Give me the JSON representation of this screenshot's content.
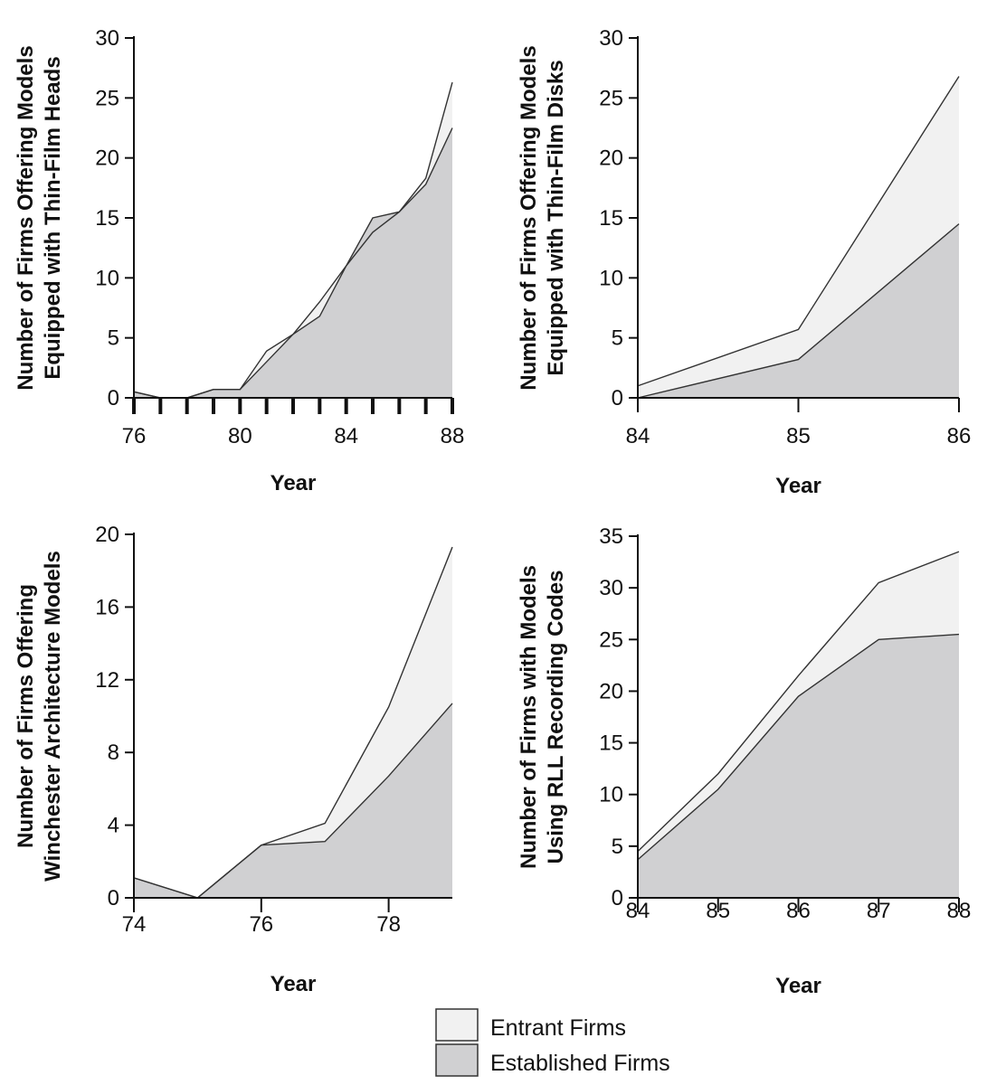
{
  "colors": {
    "entrant": "#f1f1f1",
    "established": "#d0d0d2",
    "line": "#333333",
    "axis": "#111111"
  },
  "legend": {
    "items": [
      {
        "label": "Entrant Firms",
        "color": "#f1f1f1"
      },
      {
        "label": "Established Firms",
        "color": "#d0d0d2"
      }
    ]
  },
  "chart_data": [
    {
      "type": "area",
      "stacked": true,
      "xlabel": "Year",
      "ylabel": [
        "Number of Firms Offering Models",
        "Equipped with Thin-Film Heads"
      ],
      "xlim": [
        76,
        88
      ],
      "ylim": [
        0,
        30
      ],
      "xticks": [
        76,
        80,
        84,
        88
      ],
      "yticks": [
        0,
        5,
        10,
        15,
        20,
        25,
        30
      ],
      "minor_xticks": [
        76,
        77,
        78,
        79,
        80,
        81,
        82,
        83,
        84,
        85,
        86,
        87,
        88
      ],
      "x": [
        76,
        77,
        78,
        79,
        80,
        81,
        82,
        83,
        84,
        85,
        86,
        87,
        88
      ],
      "series": [
        {
          "name": "Established Firms",
          "values": [
            0.5,
            0,
            0,
            0.7,
            0.7,
            3.0,
            5.3,
            6.8,
            11.0,
            15.0,
            15.5,
            17.8,
            22.5
          ]
        },
        {
          "name": "Entrant Firms",
          "values": [
            0,
            0,
            0,
            0,
            0,
            0.9,
            0,
            1.2,
            0,
            -1.2,
            0,
            0.5,
            3.8
          ]
        }
      ]
    },
    {
      "type": "area",
      "stacked": true,
      "xlabel": "Year",
      "ylabel": [
        "Number of Firms Offering Models",
        "Equipped with Thin-Film Disks"
      ],
      "xlim": [
        84,
        86
      ],
      "ylim": [
        0,
        30
      ],
      "xticks": [
        84,
        85,
        86
      ],
      "yticks": [
        0,
        5,
        10,
        15,
        20,
        25,
        30
      ],
      "x": [
        84,
        85,
        86
      ],
      "series": [
        {
          "name": "Established Firms",
          "values": [
            0,
            3.2,
            14.5
          ]
        },
        {
          "name": "Entrant Firms",
          "values": [
            1.0,
            2.5,
            12.3
          ]
        }
      ]
    },
    {
      "type": "area",
      "stacked": true,
      "xlabel": "Year",
      "ylabel": [
        "Number of Firms Offering",
        "Winchester Architecture Models"
      ],
      "xlim": [
        74,
        79
      ],
      "ylim": [
        0,
        20
      ],
      "xticks": [
        74,
        76,
        78
      ],
      "yticks": [
        0,
        4,
        8,
        12,
        16,
        20
      ],
      "x": [
        74,
        75,
        76,
        77,
        78,
        79
      ],
      "series": [
        {
          "name": "Established Firms",
          "values": [
            1.1,
            0,
            2.9,
            3.1,
            6.7,
            10.7
          ]
        },
        {
          "name": "Entrant Firms",
          "values": [
            0,
            0,
            0,
            1.0,
            3.8,
            8.6
          ]
        }
      ]
    },
    {
      "type": "area",
      "stacked": true,
      "xlabel": "Year",
      "ylabel": [
        "Number of Firms with Models",
        "Using RLL Recording Codes"
      ],
      "xlim": [
        84,
        88
      ],
      "ylim": [
        0,
        35
      ],
      "xticks": [
        84,
        85,
        86,
        87,
        88
      ],
      "yticks": [
        0,
        5,
        10,
        15,
        20,
        25,
        30,
        35
      ],
      "x": [
        84,
        85,
        86,
        87,
        88
      ],
      "series": [
        {
          "name": "Established Firms",
          "values": [
            3.7,
            10.5,
            19.5,
            25.0,
            25.5
          ]
        },
        {
          "name": "Entrant Firms",
          "values": [
            0.8,
            1.5,
            2.0,
            5.5,
            8.0
          ]
        }
      ]
    }
  ]
}
